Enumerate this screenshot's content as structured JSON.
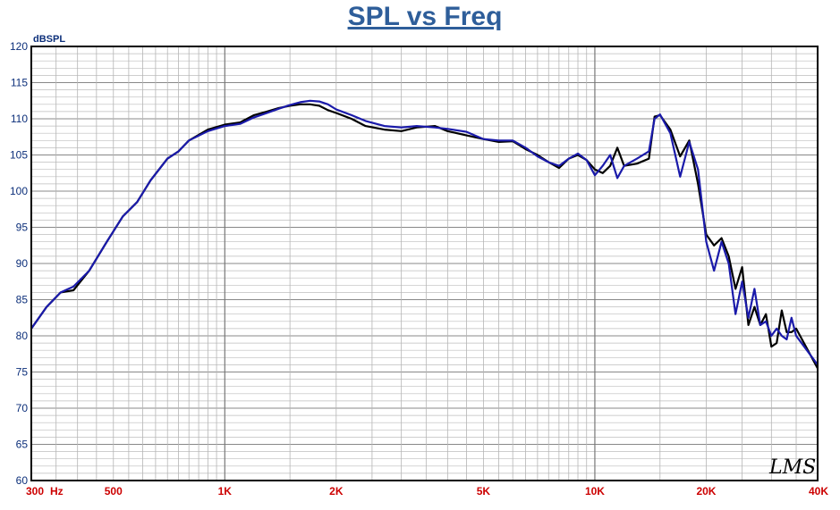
{
  "chart_data": {
    "type": "line",
    "title": "SPL vs Freq",
    "ylabel": "dBSPL",
    "xlabel": "",
    "xscale": "log",
    "xlim": [
      300,
      40000
    ],
    "ylim": [
      60,
      120
    ],
    "grid": true,
    "yticks": [
      60,
      65,
      70,
      75,
      80,
      85,
      90,
      95,
      100,
      105,
      110,
      115,
      120
    ],
    "xticks": [
      {
        "value": 300,
        "label": "300"
      },
      {
        "value": 500,
        "label": "500"
      },
      {
        "value": 1000,
        "label": "1K"
      },
      {
        "value": 2000,
        "label": "2K"
      },
      {
        "value": 5000,
        "label": "5K"
      },
      {
        "value": 10000,
        "label": "10K"
      },
      {
        "value": 20000,
        "label": "20K"
      },
      {
        "value": 40000,
        "label": "40K"
      }
    ],
    "hz_label": "Hz",
    "watermark": "LMS",
    "series": [
      {
        "color": "#000000",
        "points": [
          [
            300,
            81
          ],
          [
            330,
            84
          ],
          [
            360,
            86
          ],
          [
            390,
            86.3
          ],
          [
            430,
            89
          ],
          [
            480,
            93
          ],
          [
            530,
            96.5
          ],
          [
            580,
            98.5
          ],
          [
            630,
            101.5
          ],
          [
            700,
            104.5
          ],
          [
            750,
            105.5
          ],
          [
            800,
            107
          ],
          [
            900,
            108.5
          ],
          [
            1000,
            109.2
          ],
          [
            1100,
            109.5
          ],
          [
            1200,
            110.5
          ],
          [
            1300,
            111
          ],
          [
            1400,
            111.5
          ],
          [
            1500,
            111.8
          ],
          [
            1600,
            112
          ],
          [
            1700,
            112
          ],
          [
            1800,
            111.8
          ],
          [
            1900,
            111.2
          ],
          [
            2000,
            110.8
          ],
          [
            2200,
            110
          ],
          [
            2400,
            109
          ],
          [
            2700,
            108.5
          ],
          [
            3000,
            108.3
          ],
          [
            3300,
            108.8
          ],
          [
            3700,
            109
          ],
          [
            4000,
            108.3
          ],
          [
            4500,
            107.7
          ],
          [
            5000,
            107.2
          ],
          [
            5500,
            106.8
          ],
          [
            6000,
            106.9
          ],
          [
            6500,
            105.8
          ],
          [
            7000,
            105
          ],
          [
            7500,
            104
          ],
          [
            8000,
            103.2
          ],
          [
            8500,
            104.5
          ],
          [
            9000,
            105
          ],
          [
            9500,
            104.3
          ],
          [
            10000,
            103
          ],
          [
            10500,
            102.5
          ],
          [
            11000,
            103.5
          ],
          [
            11500,
            106
          ],
          [
            12000,
            103.5
          ],
          [
            13000,
            103.8
          ],
          [
            14000,
            104.5
          ],
          [
            14500,
            110.3
          ],
          [
            15000,
            110.5
          ],
          [
            16000,
            108.5
          ],
          [
            17000,
            104.8
          ],
          [
            18000,
            107
          ],
          [
            19000,
            101
          ],
          [
            20000,
            94
          ],
          [
            21000,
            92.5
          ],
          [
            22000,
            93.5
          ],
          [
            23000,
            91
          ],
          [
            24000,
            86.5
          ],
          [
            25000,
            89.5
          ],
          [
            26000,
            81.5
          ],
          [
            27000,
            84
          ],
          [
            28000,
            81.5
          ],
          [
            29000,
            83
          ],
          [
            30000,
            78.5
          ],
          [
            31000,
            79
          ],
          [
            32000,
            83.5
          ],
          [
            33000,
            80.5
          ],
          [
            34000,
            80.5
          ],
          [
            35000,
            81
          ],
          [
            40000,
            75.5
          ]
        ]
      },
      {
        "color": "#1a1aaa",
        "points": [
          [
            300,
            81
          ],
          [
            330,
            84
          ],
          [
            360,
            86
          ],
          [
            390,
            86.8
          ],
          [
            430,
            89
          ],
          [
            480,
            93
          ],
          [
            530,
            96.5
          ],
          [
            580,
            98.5
          ],
          [
            630,
            101.5
          ],
          [
            700,
            104.5
          ],
          [
            750,
            105.5
          ],
          [
            800,
            107
          ],
          [
            900,
            108.3
          ],
          [
            1000,
            109
          ],
          [
            1100,
            109.3
          ],
          [
            1200,
            110.2
          ],
          [
            1300,
            110.8
          ],
          [
            1400,
            111.4
          ],
          [
            1500,
            111.9
          ],
          [
            1600,
            112.3
          ],
          [
            1700,
            112.5
          ],
          [
            1800,
            112.4
          ],
          [
            1900,
            112
          ],
          [
            2000,
            111.3
          ],
          [
            2200,
            110.5
          ],
          [
            2400,
            109.7
          ],
          [
            2700,
            109
          ],
          [
            3000,
            108.8
          ],
          [
            3300,
            109
          ],
          [
            3700,
            108.8
          ],
          [
            4000,
            108.6
          ],
          [
            4500,
            108.2
          ],
          [
            5000,
            107.2
          ],
          [
            5500,
            107
          ],
          [
            6000,
            107
          ],
          [
            6500,
            106
          ],
          [
            7000,
            104.8
          ],
          [
            7500,
            104
          ],
          [
            8000,
            103.5
          ],
          [
            8500,
            104.5
          ],
          [
            9000,
            105.2
          ],
          [
            9500,
            104.3
          ],
          [
            10000,
            102.2
          ],
          [
            10500,
            103.5
          ],
          [
            11000,
            105
          ],
          [
            11500,
            101.8
          ],
          [
            12000,
            103.5
          ],
          [
            13000,
            104.5
          ],
          [
            14000,
            105.5
          ],
          [
            14500,
            110
          ],
          [
            15000,
            110.6
          ],
          [
            16000,
            108
          ],
          [
            17000,
            102
          ],
          [
            18000,
            106.8
          ],
          [
            19000,
            103
          ],
          [
            20000,
            93
          ],
          [
            21000,
            89
          ],
          [
            22000,
            93
          ],
          [
            23000,
            90
          ],
          [
            24000,
            83
          ],
          [
            25000,
            87.5
          ],
          [
            26000,
            82.5
          ],
          [
            27000,
            86.5
          ],
          [
            28000,
            81.5
          ],
          [
            29000,
            82
          ],
          [
            30000,
            80
          ],
          [
            31000,
            81
          ],
          [
            32000,
            80
          ],
          [
            33000,
            79.5
          ],
          [
            34000,
            82.5
          ],
          [
            35000,
            80
          ],
          [
            40000,
            76
          ]
        ]
      }
    ]
  }
}
